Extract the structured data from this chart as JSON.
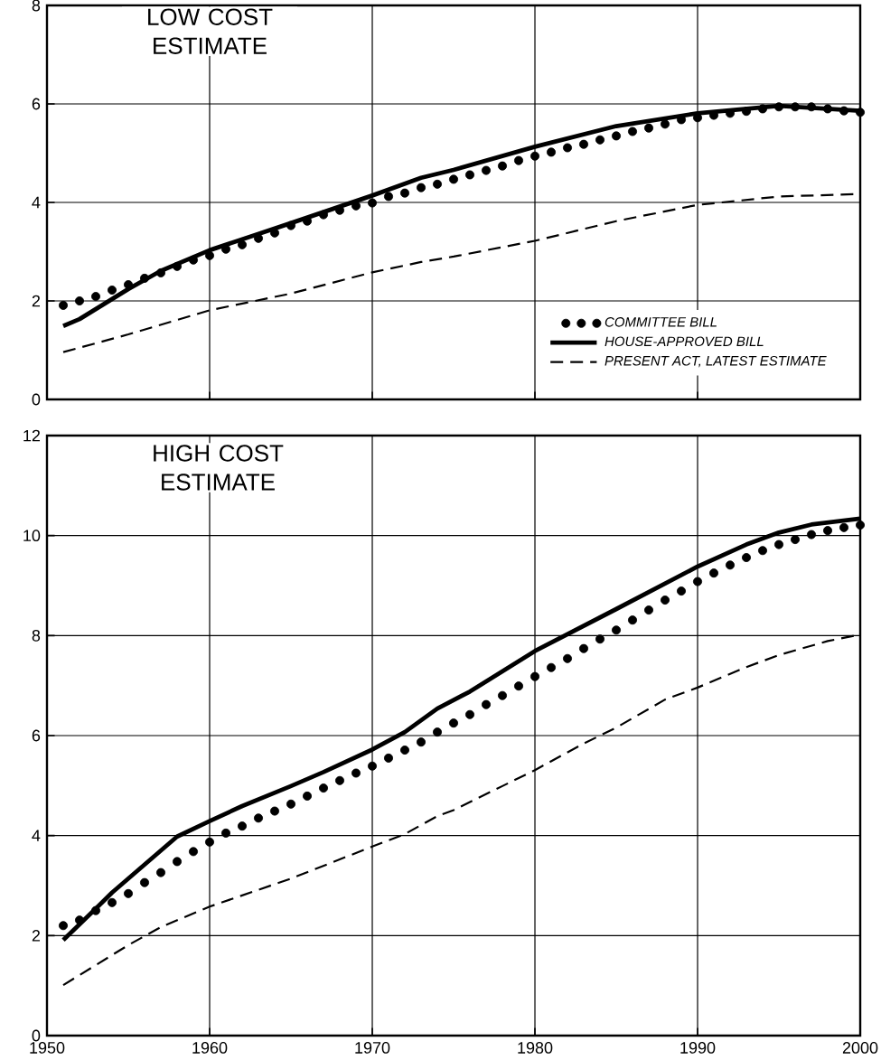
{
  "chart_data": [
    {
      "type": "line",
      "title": "LOW COST ESTIMATE",
      "xlim": [
        1950,
        2000
      ],
      "ylim": [
        0,
        8
      ],
      "xticks": [
        1950,
        1960,
        1970,
        1980,
        1990,
        2000
      ],
      "yticks": [
        0,
        2,
        4,
        6,
        8
      ],
      "grid": true,
      "legend": "bottom right",
      "tick_labels": "y",
      "series": [
        {
          "name": "COMMITTEE BILL",
          "type": "scatter",
          "marker": "circle",
          "color": "#000000",
          "x": [
            1951,
            1952,
            1953,
            1954,
            1955,
            1956,
            1957,
            1958,
            1959,
            1960,
            1961,
            1962,
            1963,
            1964,
            1965,
            1966,
            1967,
            1968,
            1969,
            1970,
            1971,
            1972,
            1973,
            1974,
            1975,
            1976,
            1977,
            1978,
            1979,
            1980,
            1981,
            1982,
            1983,
            1984,
            1985,
            1986,
            1987,
            1988,
            1989,
            1990,
            1991,
            1992,
            1993,
            1994,
            1995,
            1996,
            1997,
            1998,
            1999,
            2000
          ],
          "values": [
            1.91,
            2.0,
            2.09,
            2.22,
            2.33,
            2.46,
            2.57,
            2.7,
            2.83,
            2.92,
            3.05,
            3.14,
            3.27,
            3.38,
            3.53,
            3.62,
            3.75,
            3.84,
            3.93,
            3.99,
            4.12,
            4.19,
            4.3,
            4.37,
            4.47,
            4.56,
            4.65,
            4.74,
            4.85,
            4.94,
            5.02,
            5.11,
            5.18,
            5.27,
            5.35,
            5.44,
            5.51,
            5.59,
            5.68,
            5.72,
            5.77,
            5.81,
            5.85,
            5.9,
            5.94,
            5.94,
            5.94,
            5.9,
            5.86,
            5.83
          ]
        },
        {
          "name": "HOUSE-APPROVED BILL",
          "type": "line",
          "line_style": "solid",
          "color": "#000000",
          "x": [
            1951,
            1952,
            1955,
            1957,
            1960,
            1965,
            1970,
            1973,
            1975,
            1980,
            1985,
            1990,
            1995,
            2000
          ],
          "values": [
            1.49,
            1.63,
            2.24,
            2.61,
            3.03,
            3.58,
            4.14,
            4.5,
            4.66,
            5.13,
            5.55,
            5.81,
            5.96,
            5.86
          ]
        },
        {
          "name": "PRESENT ACT, LATEST ESTIMATE",
          "type": "line",
          "line_style": "dashed",
          "color": "#000000",
          "x": [
            1951,
            1955,
            1960,
            1965,
            1970,
            1973,
            1975,
            1980,
            1985,
            1990,
            1995,
            2000
          ],
          "values": [
            0.96,
            1.32,
            1.81,
            2.15,
            2.58,
            2.79,
            2.9,
            3.22,
            3.62,
            3.95,
            4.12,
            4.17
          ]
        }
      ]
    },
    {
      "type": "line",
      "title": "HIGH COST ESTIMATE",
      "xlim": [
        1950,
        2000
      ],
      "ylim": [
        0,
        12
      ],
      "xticks": [
        1950,
        1960,
        1970,
        1980,
        1990,
        2000
      ],
      "yticks": [
        0,
        2,
        4,
        6,
        8,
        10,
        12
      ],
      "grid": true,
      "series": [
        {
          "type": "scatter",
          "marker": "circle",
          "color": "#000000",
          "x": [
            1951,
            1952,
            1953,
            1954,
            1955,
            1956,
            1957,
            1958,
            1959,
            1960,
            1961,
            1962,
            1963,
            1964,
            1965,
            1966,
            1967,
            1968,
            1969,
            1970,
            1971,
            1972,
            1973,
            1974,
            1975,
            1976,
            1977,
            1978,
            1979,
            1980,
            1981,
            1982,
            1983,
            1984,
            1985,
            1986,
            1987,
            1988,
            1989,
            1990,
            1991,
            1992,
            1993,
            1994,
            1995,
            1996,
            1997,
            1998,
            1999,
            2000
          ],
          "values": [
            2.2,
            2.31,
            2.5,
            2.66,
            2.84,
            3.06,
            3.26,
            3.48,
            3.68,
            3.87,
            4.05,
            4.19,
            4.35,
            4.49,
            4.63,
            4.79,
            4.95,
            5.1,
            5.25,
            5.39,
            5.55,
            5.71,
            5.87,
            6.07,
            6.25,
            6.42,
            6.62,
            6.8,
            6.99,
            7.18,
            7.36,
            7.54,
            7.74,
            7.93,
            8.11,
            8.31,
            8.51,
            8.71,
            8.89,
            9.08,
            9.25,
            9.41,
            9.56,
            9.7,
            9.82,
            9.92,
            10.02,
            10.1,
            10.16,
            10.21
          ]
        },
        {
          "type": "line",
          "line_style": "solid",
          "color": "#000000",
          "x": [
            1951,
            1953,
            1954,
            1955,
            1957,
            1958,
            1960,
            1962,
            1965,
            1967,
            1970,
            1972,
            1974,
            1976,
            1980,
            1985,
            1990,
            1993,
            1995,
            1997,
            2000
          ],
          "values": [
            1.91,
            2.54,
            2.86,
            3.14,
            3.7,
            3.98,
            4.29,
            4.59,
            4.99,
            5.27,
            5.72,
            6.07,
            6.54,
            6.88,
            7.69,
            8.53,
            9.38,
            9.82,
            10.06,
            10.22,
            10.34
          ]
        },
        {
          "type": "line",
          "line_style": "dashed",
          "color": "#000000",
          "x": [
            1951,
            1955,
            1957,
            1960,
            1965,
            1970,
            1972,
            1974,
            1975,
            1978,
            1980,
            1983,
            1985,
            1988,
            1990,
            1993,
            1995,
            1998,
            2000
          ],
          "values": [
            1.01,
            1.81,
            2.17,
            2.58,
            3.14,
            3.78,
            4.03,
            4.39,
            4.51,
            4.99,
            5.31,
            5.84,
            6.16,
            6.72,
            6.96,
            7.37,
            7.61,
            7.89,
            8.02
          ]
        }
      ]
    }
  ]
}
